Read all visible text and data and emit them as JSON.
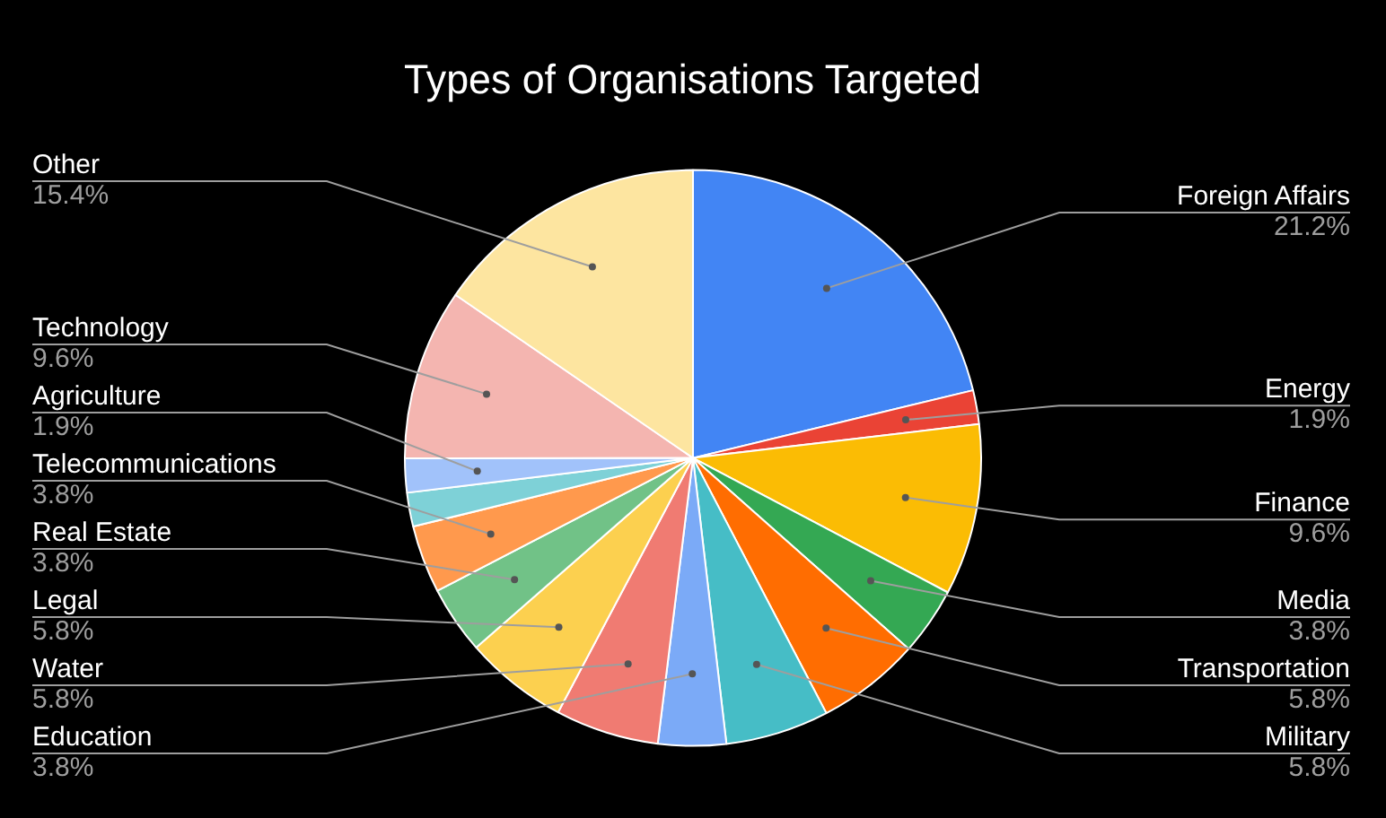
{
  "chart_data": {
    "type": "pie",
    "title": "Types of Organisations Targeted",
    "categories": [
      "Foreign Affairs",
      "Energy",
      "Finance",
      "Media",
      "Transportation",
      "Military",
      "Education",
      "Water",
      "Legal",
      "Real Estate",
      "Telecommunications",
      null,
      "Agriculture",
      "Technology",
      "Other"
    ],
    "values": [
      21.2,
      1.9,
      9.6,
      3.8,
      5.8,
      5.8,
      3.8,
      5.8,
      5.8,
      3.8,
      3.8,
      1.9,
      1.9,
      9.6,
      15.4
    ],
    "value_labels": [
      "21.2%",
      "1.9%",
      "9.6%",
      "3.8%",
      "5.8%",
      "5.8%",
      "3.8%",
      "5.8%",
      "5.8%",
      "3.8%",
      "3.8%",
      null,
      "1.9%",
      "9.6%",
      "15.4%"
    ],
    "colors": [
      "#4285f4",
      "#ea4335",
      "#fbbc04",
      "#34a853",
      "#ff6d01",
      "#46bdc6",
      "#7baaf7",
      "#f07b72",
      "#fcd04f",
      "#71c287",
      "#ff994d",
      "#7ed1d7",
      "#a1c2fa",
      "#f4b5b0",
      "#fde5a0"
    ]
  }
}
